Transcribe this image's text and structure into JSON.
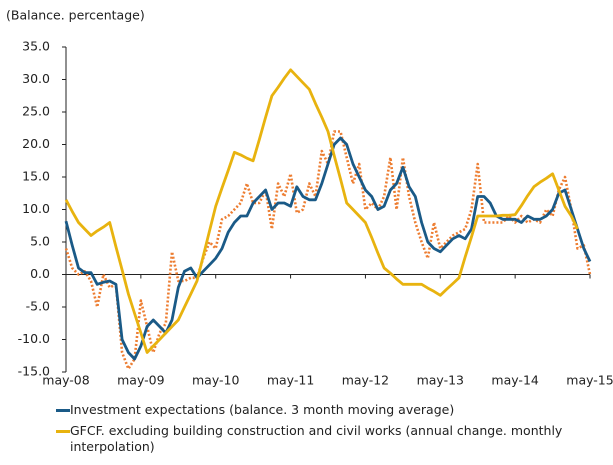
{
  "chart_data": {
    "type": "line",
    "y_axis_label": "(Balance. percentage)",
    "categories": [
      "may-08",
      null,
      null,
      null,
      null,
      null,
      null,
      null,
      null,
      null,
      null,
      null,
      "may-09",
      null,
      null,
      null,
      null,
      null,
      null,
      null,
      null,
      null,
      null,
      null,
      "may-10",
      null,
      null,
      null,
      null,
      null,
      null,
      null,
      null,
      null,
      null,
      null,
      "may-11",
      null,
      null,
      null,
      null,
      null,
      null,
      null,
      null,
      null,
      null,
      null,
      "may-12",
      null,
      null,
      null,
      null,
      null,
      null,
      null,
      null,
      null,
      null,
      null,
      "may-13",
      null,
      null,
      null,
      null,
      null,
      null,
      null,
      null,
      null,
      null,
      null,
      "may-14",
      null,
      null,
      null,
      null,
      null,
      null,
      null,
      null,
      null,
      null,
      null,
      "may-15"
    ],
    "ylim": [
      -15,
      35
    ],
    "yticks": [
      {
        "value": -15,
        "label": "-15.0"
      },
      {
        "value": -10,
        "label": "-10.0"
      },
      {
        "value": -5,
        "label": "-5.0"
      },
      {
        "value": 0,
        "label": "0.0"
      },
      {
        "value": 5,
        "label": "5.0"
      },
      {
        "value": 10,
        "label": "10.0"
      },
      {
        "value": 15,
        "label": "15.0"
      },
      {
        "value": 20,
        "label": "20.0"
      },
      {
        "value": 25,
        "label": "25.0"
      },
      {
        "value": 30,
        "label": "30.0"
      },
      {
        "value": 35,
        "label": "35.0"
      }
    ],
    "series": [
      {
        "color": "#ed7d31",
        "dash": true,
        "values": [
          4,
          1,
          0,
          0.5,
          -1,
          -5,
          0,
          -2,
          -1.5,
          -12,
          -14.5,
          -13,
          -4,
          -8,
          -12,
          -9,
          -7.5,
          3.5,
          -1,
          -1,
          -0.5,
          -0.5,
          2.5,
          5,
          4,
          8.5,
          9,
          10,
          11,
          14,
          11,
          11,
          13,
          7,
          14,
          12,
          15.5,
          9.5,
          10,
          14,
          12,
          19,
          17,
          22,
          22,
          18,
          14,
          17,
          10,
          11,
          10,
          12,
          18,
          10,
          18,
          12,
          8,
          5,
          2.5,
          8,
          4,
          5,
          6,
          6.5,
          7,
          10,
          17,
          8,
          8,
          8,
          8,
          9,
          8,
          9,
          8,
          8.5,
          8,
          10,
          9,
          13,
          15,
          10,
          4,
          4.5,
          0
        ]
      },
      {
        "name": "Investment expectations (balance. 3 month moving average)",
        "color": "#1a5a87",
        "dash": false,
        "values": [
          8.2,
          4.5,
          1,
          0.3,
          0.3,
          -1.5,
          -1.2,
          -1,
          -1.5,
          -10,
          -12,
          -13,
          -11,
          -8,
          -7,
          -8,
          -9,
          -7,
          -2,
          0.5,
          1,
          -0.5,
          0.5,
          1.5,
          2.5,
          4,
          6.5,
          8,
          9,
          9,
          11,
          12,
          13,
          10,
          11,
          11,
          10.5,
          13.5,
          12,
          11.5,
          11.5,
          14,
          17,
          20,
          21,
          20,
          17,
          15,
          13,
          12,
          10,
          10.5,
          13,
          14,
          16.5,
          13.5,
          12,
          8,
          5,
          4,
          3.5,
          4.5,
          5.5,
          6,
          5.5,
          7,
          12,
          12,
          11,
          9,
          8.5,
          8.5,
          8.5,
          8,
          9,
          8.5,
          8.5,
          9,
          10,
          12.5,
          13,
          10,
          7,
          4,
          2
        ]
      },
      {
        "name": "GFCF. excluding building construction and civil works (annual change. monthly interpolation)",
        "color": "#e8b30f",
        "dash": false,
        "values": [
          11.5,
          9.7,
          8,
          7,
          6,
          6.7,
          7.3,
          8,
          4.3,
          0.7,
          -3,
          -6,
          -9,
          -12,
          -11,
          -10,
          -9,
          -8,
          -7,
          -5,
          -3,
          -1,
          2.8,
          6.7,
          10.5,
          13.3,
          16,
          18.8,
          18.4,
          17.9,
          17.5,
          20.8,
          24.2,
          27.5,
          28.8,
          30.2,
          31.5,
          30.5,
          29.5,
          28.5,
          26.3,
          24.2,
          22,
          18.3,
          14.7,
          11,
          10,
          9,
          8,
          5.7,
          3.3,
          1,
          0.2,
          -0.7,
          -1.5,
          -1.5,
          -1.5,
          -1.5,
          -2.1,
          -2.6,
          -3.2,
          -2.3,
          -1.4,
          -0.5,
          2.7,
          5.8,
          9,
          9,
          9,
          9,
          9.1,
          9.1,
          9.2,
          10.6,
          12.1,
          13.5,
          14.2,
          14.8,
          15.5,
          13,
          10.5,
          9,
          7,
          null,
          null
        ]
      }
    ]
  }
}
